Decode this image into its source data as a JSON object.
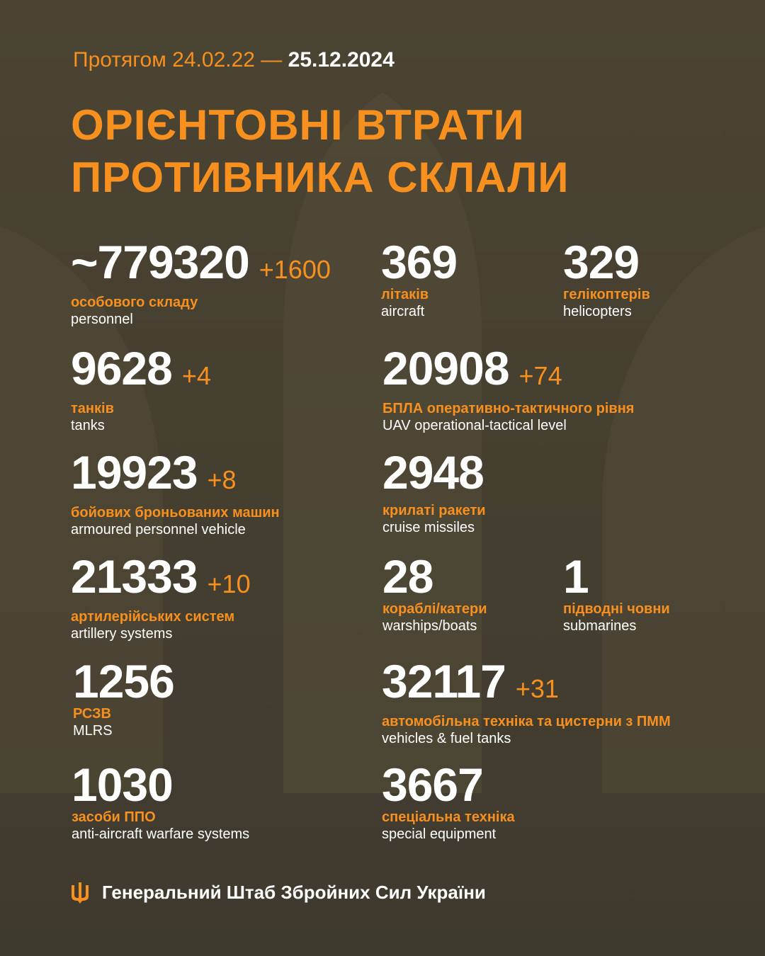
{
  "colors": {
    "accent": "#f7901e",
    "background": "#4a4433",
    "text": "#ffffff"
  },
  "header": {
    "period_prefix": "Протягом 24.02.22 —",
    "period_end": "25.12.2024",
    "title_line1": "ОРІЄНТОВНІ ВТРАТИ",
    "title_line2": "ПРОТИВНИКА СКЛАЛИ"
  },
  "stats": [
    {
      "value": "~779320",
      "delta": "+1600",
      "ua": "особового складу",
      "en": "personnel"
    },
    {
      "value": "369",
      "delta": "",
      "ua": "літаків",
      "en": "aircraft"
    },
    {
      "value": "329",
      "delta": "",
      "ua": "гелікоптерів",
      "en": "helicopters"
    },
    {
      "value": "9628",
      "delta": "+4",
      "ua": "танків",
      "en": "tanks"
    },
    {
      "value": "20908",
      "delta": "+74",
      "ua": "БПЛА оперативно-тактичного рівня",
      "en": "UAV operational-tactical level"
    },
    {
      "value": "19923",
      "delta": "+8",
      "ua": "бойових броньованих машин",
      "en": "armoured personnel vehicle"
    },
    {
      "value": "2948",
      "delta": "",
      "ua": "крилаті ракети",
      "en": "cruise missiles"
    },
    {
      "value": "21333",
      "delta": "+10",
      "ua": "артилерійських систем",
      "en": "artillery systems"
    },
    {
      "value": "28",
      "delta": "",
      "ua": "кораблі/катери",
      "en": "warships/boats"
    },
    {
      "value": "1",
      "delta": "",
      "ua": "підводні човни",
      "en": "submarines"
    },
    {
      "value": "1256",
      "delta": "",
      "ua": "РСЗВ",
      "en": "MLRS"
    },
    {
      "value": "32117",
      "delta": "+31",
      "ua": "автомобільна техніка та цистерни з ПММ",
      "en": "vehicles & fuel tanks"
    },
    {
      "value": "1030",
      "delta": "",
      "ua": "засоби ППО",
      "en": "anti-aircraft warfare systems"
    },
    {
      "value": "3667",
      "delta": "",
      "ua": "спеціальна техніка",
      "en": "special equipment"
    }
  ],
  "footer": {
    "logo_icon": "trident-icon",
    "org": "Генеральний Штаб Збройних Сил України"
  }
}
